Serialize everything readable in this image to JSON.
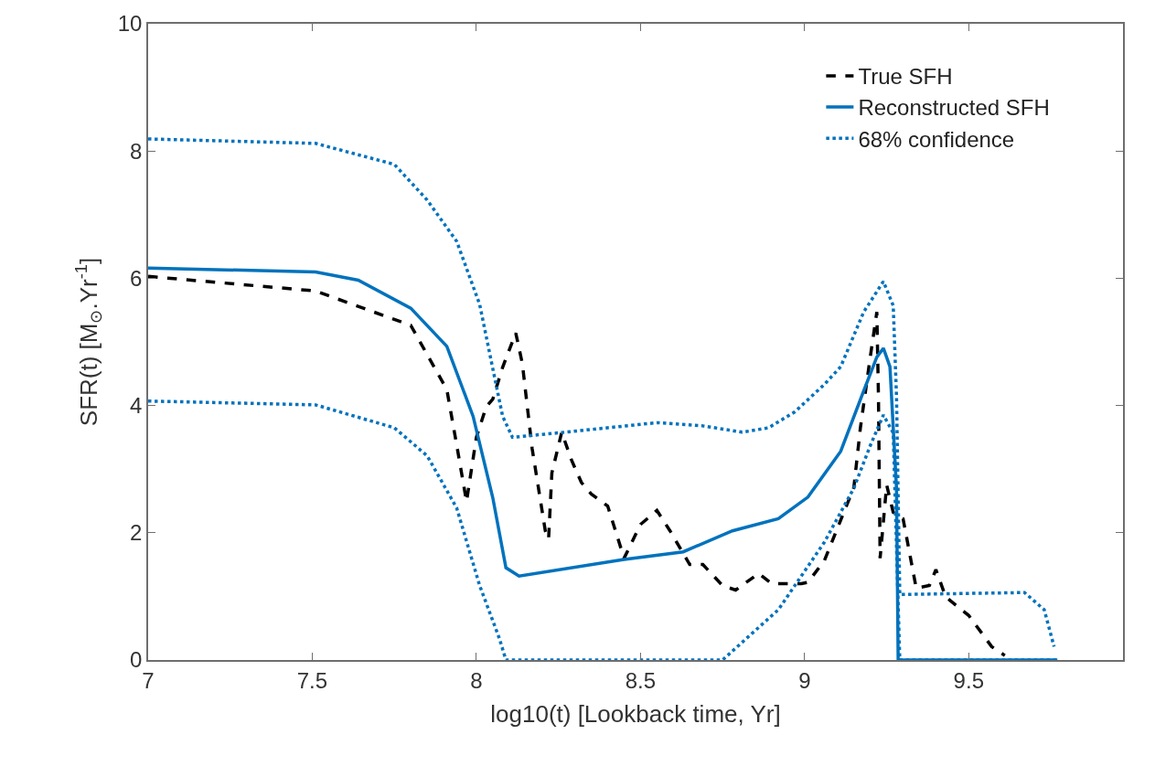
{
  "chart_data": {
    "type": "line",
    "xlabel": "log10(t) [Lookback time, Yr]",
    "ylabel": "SFR(t) [M$_{⊙}$.Yr$^{-1}$]",
    "xlim": [
      7,
      9.97
    ],
    "xticks": [
      7,
      7.5,
      8,
      8.5,
      9,
      9.5
    ],
    "ylim": [
      0,
      10
    ],
    "yticks": [
      0,
      2,
      4,
      6,
      8,
      10
    ],
    "legend": "top right",
    "marker": "none",
    "series": [
      {
        "name": "True SFH",
        "color": "#000000",
        "line_style": "dashed",
        "x": [
          7.0,
          7.51,
          7.8,
          7.91,
          7.94,
          7.97,
          8.0,
          8.03,
          8.05,
          8.08,
          8.12,
          8.14,
          8.17,
          8.21,
          8.22,
          8.23,
          8.26,
          8.29,
          8.32,
          8.35,
          8.4,
          8.45,
          8.5,
          8.55,
          8.59,
          8.65,
          8.69,
          8.75,
          8.79,
          8.86,
          8.9,
          8.99,
          9.01,
          9.06,
          9.15,
          9.17,
          9.2,
          9.22,
          9.225,
          9.23,
          9.25,
          9.27,
          9.3,
          9.34,
          9.38,
          9.4,
          9.43,
          9.5,
          9.57,
          9.61
        ],
        "values": [
          6.03,
          5.8,
          5.26,
          4.25,
          3.38,
          2.49,
          3.5,
          3.98,
          4.1,
          4.6,
          5.14,
          4.66,
          3.32,
          2.03,
          1.9,
          2.94,
          3.58,
          3.14,
          2.79,
          2.61,
          2.42,
          1.6,
          2.13,
          2.35,
          2.03,
          1.5,
          1.5,
          1.17,
          1.1,
          1.36,
          1.2,
          1.2,
          1.22,
          1.56,
          2.71,
          3.65,
          4.76,
          5.47,
          4.14,
          1.6,
          2.75,
          2.32,
          2.22,
          1.13,
          1.17,
          1.42,
          0.99,
          0.7,
          0.21,
          0.07
        ]
      },
      {
        "name": "Reconstructed SFH",
        "color": "#0072bd",
        "line_style": "solid",
        "x": [
          7.0,
          7.51,
          7.64,
          7.8,
          7.91,
          7.99,
          8.05,
          8.09,
          8.13,
          8.45,
          8.63,
          8.78,
          8.92,
          9.01,
          9.11,
          9.18,
          9.22,
          9.24,
          9.26,
          9.28,
          9.285,
          9.77
        ],
        "values": [
          6.16,
          6.1,
          5.97,
          5.53,
          4.93,
          3.83,
          2.55,
          1.45,
          1.32,
          1.58,
          1.7,
          2.03,
          2.22,
          2.56,
          3.28,
          4.23,
          4.76,
          4.9,
          4.61,
          2.7,
          0,
          0
        ]
      },
      {
        "name": "68% confidence",
        "color": "#0072bd",
        "line_style": "dotted",
        "x": [
          7.0,
          7.51,
          7.75,
          7.85,
          7.94,
          8.01,
          8.05,
          8.08,
          8.11,
          8.25,
          8.55,
          8.69,
          8.81,
          8.89,
          8.97,
          9.06,
          9.11,
          9.18,
          9.24,
          9.27,
          9.28,
          9.29,
          9.3,
          9.67,
          9.73,
          9.76
        ],
        "values": [
          8.19,
          8.12,
          7.79,
          7.23,
          6.58,
          5.59,
          4.58,
          3.83,
          3.5,
          3.57,
          3.73,
          3.68,
          3.58,
          3.65,
          3.9,
          4.33,
          4.61,
          5.47,
          5.95,
          5.57,
          4.14,
          1.03,
          1.03,
          1.06,
          0.79,
          0.21
        ]
      },
      {
        "color": "#0072bd",
        "line_style": "dotted",
        "x": [
          7.0,
          7.51,
          7.75,
          7.85,
          7.94,
          8.01,
          8.07,
          8.09,
          8.75,
          8.92,
          9.06,
          9.15,
          9.2,
          9.24,
          9.27,
          9.29,
          9.77
        ],
        "values": [
          4.07,
          4.01,
          3.65,
          3.21,
          2.39,
          1.17,
          0.34,
          0,
          0,
          0.79,
          1.85,
          2.7,
          3.37,
          3.85,
          3.57,
          0,
          0
        ]
      }
    ]
  }
}
